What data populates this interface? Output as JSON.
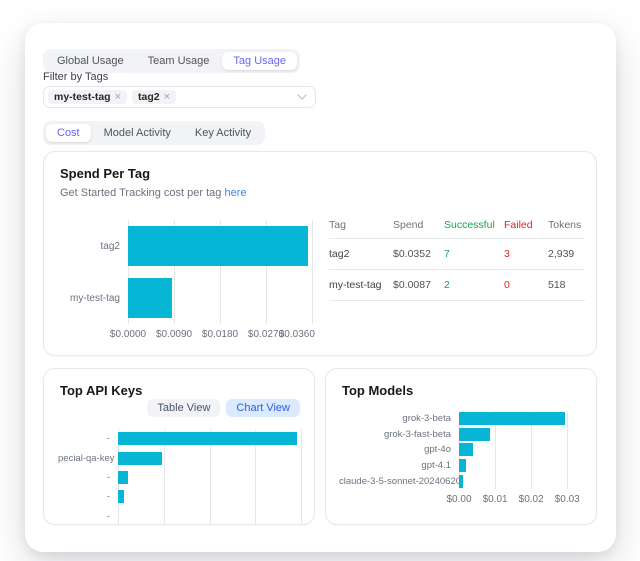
{
  "tabs_usage": {
    "items": [
      {
        "label": "Global Usage"
      },
      {
        "label": "Team Usage"
      },
      {
        "label": "Tag Usage"
      }
    ],
    "selected": "Tag Usage"
  },
  "filter": {
    "label": "Filter by Tags",
    "chips": [
      {
        "label": "my-test-tag"
      },
      {
        "label": "tag2"
      }
    ],
    "remove_icon": "×"
  },
  "tabs_view": {
    "items": [
      {
        "label": "Cost"
      },
      {
        "label": "Model Activity"
      },
      {
        "label": "Key Activity"
      }
    ],
    "selected": "Cost"
  },
  "spend_per_tag": {
    "title": "Spend Per Tag",
    "subtitle_prefix": "Get Started Tracking cost per tag ",
    "subtitle_link": "here",
    "table": {
      "columns": [
        "Tag",
        "Spend",
        "Successful",
        "Failed",
        "Tokens"
      ],
      "rows": [
        {
          "tag": "tag2",
          "spend": "$0.0352",
          "successful": "7",
          "failed": "3",
          "tokens": "2,939"
        },
        {
          "tag": "my-test-tag",
          "spend": "$0.0087",
          "successful": "2",
          "failed": "0",
          "tokens": "518"
        }
      ]
    }
  },
  "top_api_keys": {
    "title": "Top API Keys",
    "buttons": [
      {
        "label": "Table View"
      },
      {
        "label": "Chart View"
      }
    ],
    "selected_button": "Chart View"
  },
  "top_models": {
    "title": "Top Models"
  },
  "colors": {
    "bar_cyan": "#06b6d4",
    "accent_indigo": "#6366f1",
    "link_blue": "#3b82f6",
    "success_green": "#16a34a",
    "fail_red": "#dc2626",
    "chart_view_bg": "#dbeafe",
    "chart_view_text": "#2563eb"
  },
  "chart_data": [
    {
      "id": "spend_per_tag",
      "type": "bar",
      "orientation": "horizontal",
      "title": "Spend Per Tag",
      "categories": [
        "tag2",
        "my-test-tag"
      ],
      "values": [
        0.0352,
        0.0087
      ],
      "x_ticks": [
        "$0.0000",
        "$0.0090",
        "$0.0180",
        "$0.0270",
        "$0.0360"
      ],
      "xlim": [
        0,
        0.036
      ],
      "grid": true,
      "bar_color": "#06b6d4"
    },
    {
      "id": "top_api_keys",
      "type": "bar",
      "orientation": "horizontal",
      "title": "Top API Keys",
      "categories": [
        "-",
        "pecial-qa-key",
        "-",
        "-",
        "-"
      ],
      "values": [
        0.0352,
        0.0087,
        0.002,
        0.0012,
        0
      ],
      "x_ticks": [],
      "xlim": [
        0,
        0.036
      ],
      "grid": true,
      "bar_color": "#06b6d4"
    },
    {
      "id": "top_models",
      "type": "bar",
      "orientation": "horizontal",
      "title": "Top Models",
      "categories": [
        "grok-3-beta",
        "grok-3-fast-beta",
        "gpt-4o",
        "gpt-4.1",
        "claude-3-5-sonnet-20240620"
      ],
      "values": [
        0.0295,
        0.0085,
        0.004,
        0.002,
        0.001
      ],
      "x_ticks": [
        "$0.00",
        "$0.01",
        "$0.02",
        "$0.03"
      ],
      "xlim": [
        0,
        0.0305
      ],
      "grid": true,
      "bar_color": "#06b6d4"
    }
  ]
}
